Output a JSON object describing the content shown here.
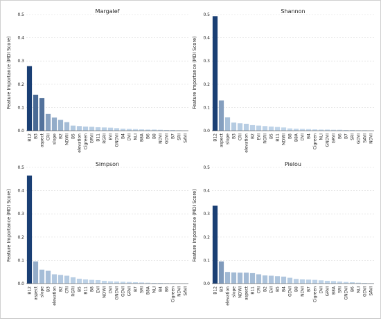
{
  "chart_data": [
    {
      "type": "bar",
      "title": "Margalef",
      "ylabel": "Feature Importance (MDI Score)",
      "ylim": [
        0,
        0.5
      ],
      "yticks": [
        "0.0",
        "0.1",
        "0.2",
        "0.3",
        "0.4",
        "0.5"
      ],
      "grid": true,
      "categories": [
        "B12",
        "B3",
        "aspect",
        "CRI",
        "slope",
        "B2",
        "NDWI",
        "B5",
        "elevation",
        "Cigreen",
        "GRVI",
        "B11",
        "RGRI",
        "EVI",
        "GNDVI",
        "B4",
        "DVI",
        "NLI",
        "B8A",
        "B6",
        "B8",
        "NDVI",
        "GDVI",
        "B7",
        "SRI",
        "SAVI"
      ],
      "values": [
        0.278,
        0.155,
        0.14,
        0.072,
        0.057,
        0.047,
        0.037,
        0.022,
        0.02,
        0.018,
        0.017,
        0.015,
        0.014,
        0.013,
        0.011,
        0.009,
        0.008,
        0.007,
        0.006,
        0.005,
        0.005,
        0.004,
        0.003,
        0.003,
        0.002,
        0.001
      ]
    },
    {
      "type": "bar",
      "title": "Shannon",
      "ylabel": "Feature Importance (MDI Score)",
      "ylim": [
        0,
        0.5
      ],
      "yticks": [
        "0.0",
        "0.1",
        "0.2",
        "0.3",
        "0.4",
        "0.5"
      ],
      "grid": true,
      "categories": [
        "B12",
        "aspect",
        "slope",
        "B3",
        "CRI",
        "elevation",
        "B2",
        "EVI",
        "RGRI",
        "B5",
        "B11",
        "NDWI",
        "B8",
        "B8A",
        "DVI",
        "B4",
        "Cigreen",
        "NLI",
        "GNDVI",
        "GRVI",
        "B6",
        "B7",
        "SRI",
        "GDVI",
        "SAVI",
        "NDVI"
      ],
      "values": [
        0.493,
        0.13,
        0.058,
        0.035,
        0.032,
        0.03,
        0.024,
        0.022,
        0.02,
        0.018,
        0.016,
        0.014,
        0.01,
        0.009,
        0.008,
        0.007,
        0.006,
        0.005,
        0.005,
        0.004,
        0.004,
        0.003,
        0.003,
        0.002,
        0.002,
        0.001
      ]
    },
    {
      "type": "bar",
      "title": "Simpson",
      "ylabel": "Feature Importance (MDI Score)",
      "ylim": [
        0,
        0.5
      ],
      "yticks": [
        "0.0",
        "0.1",
        "0.2",
        "0.3",
        "0.4",
        "0.5"
      ],
      "grid": true,
      "categories": [
        "B12",
        "aspect",
        "slope",
        "B3",
        "elevation",
        "B2",
        "CRI",
        "RGRI",
        "B5",
        "B11",
        "B8",
        "EVI",
        "NDWI",
        "DVI",
        "GNDVI",
        "GDVI",
        "GRVI",
        "B7",
        "SRI",
        "B8A",
        "NLI",
        "B4",
        "B6",
        "Cigreen",
        "NDVI",
        "SAVI"
      ],
      "values": [
        0.465,
        0.095,
        0.06,
        0.055,
        0.04,
        0.037,
        0.034,
        0.027,
        0.021,
        0.018,
        0.016,
        0.015,
        0.012,
        0.01,
        0.009,
        0.008,
        0.007,
        0.006,
        0.005,
        0.004,
        0.003,
        0.003,
        0.002,
        0.002,
        0.001,
        0.001
      ]
    },
    {
      "type": "bar",
      "title": "Pielou",
      "ylabel": "Feature Importance (MDI Score)",
      "ylim": [
        0,
        0.5
      ],
      "yticks": [
        "0.0",
        "0.1",
        "0.2",
        "0.3",
        "0.4",
        "0.5"
      ],
      "grid": true,
      "categories": [
        "B12",
        "B3",
        "elevation",
        "slope",
        "NDWI",
        "aspect",
        "B11",
        "CRI",
        "B2",
        "EVI",
        "B5",
        "B4",
        "GDVI",
        "B8",
        "NDVI",
        "B7",
        "Cigreen",
        "DVI",
        "GRVI",
        "B8A",
        "SRI",
        "GNDVI",
        "B6",
        "NLI",
        "GDVI",
        "SAVI"
      ],
      "values": [
        0.335,
        0.095,
        0.05,
        0.048,
        0.047,
        0.047,
        0.045,
        0.04,
        0.035,
        0.034,
        0.032,
        0.03,
        0.025,
        0.02,
        0.018,
        0.017,
        0.016,
        0.014,
        0.012,
        0.011,
        0.009,
        0.007,
        0.006,
        0.004,
        0.003,
        0.002
      ]
    }
  ],
  "colors": {
    "high": "#1a3f74",
    "low": "#c8dcef"
  }
}
